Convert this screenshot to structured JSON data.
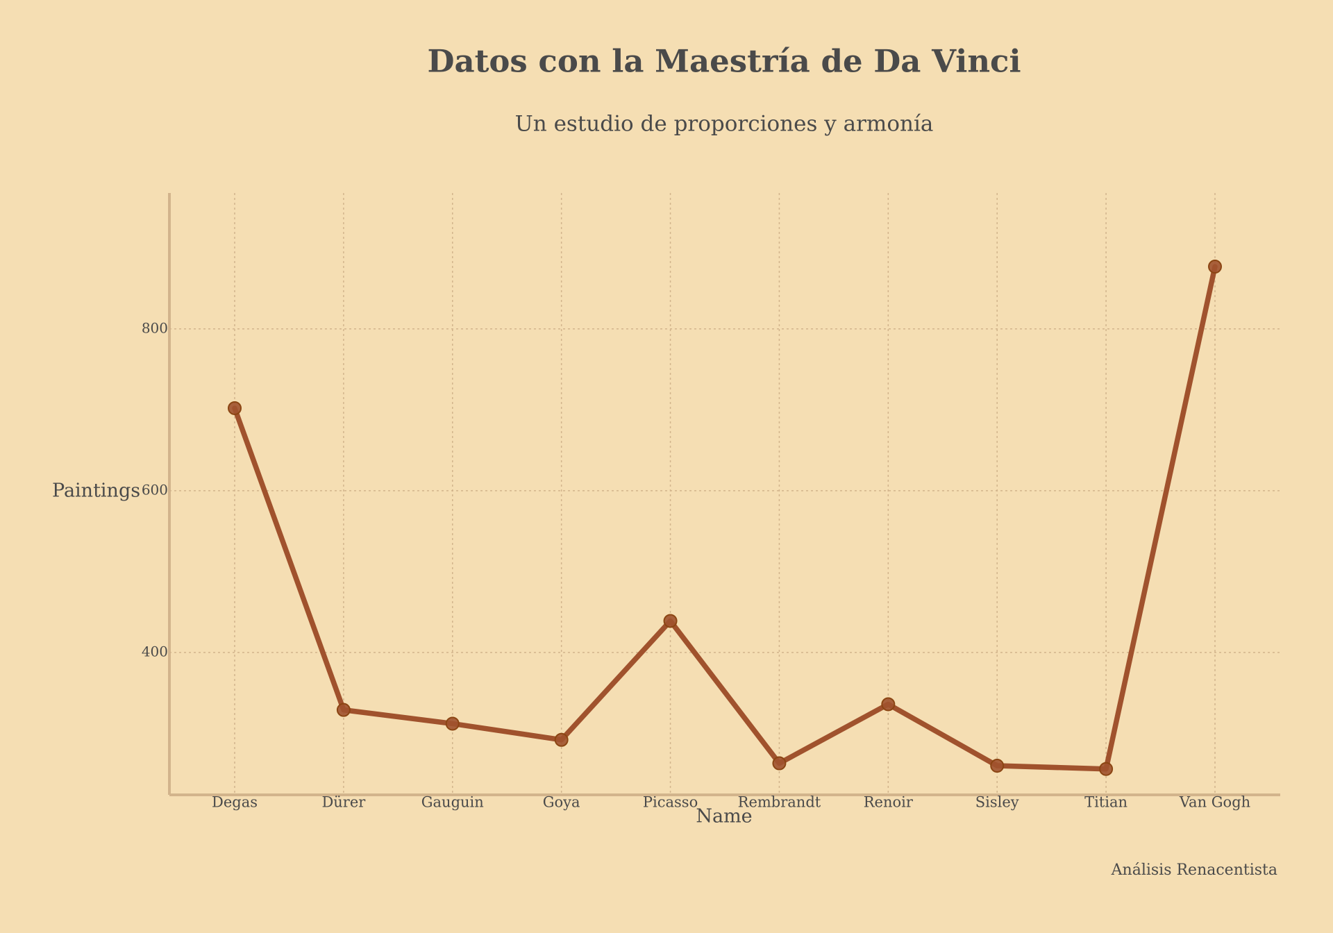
{
  "chart_data": {
    "type": "line",
    "title": "Datos con la Maestría de Da Vinci",
    "subtitle": "Un estudio de proporciones y armonía",
    "x_label": "Name",
    "y_label": "Paintings",
    "annotation": "Análisis Renacentista",
    "categories": [
      "Degas",
      "Dürer",
      "Gauguin",
      "Goya",
      "Picasso",
      "Rembrandt",
      "Renoir",
      "Sisley",
      "Titian",
      "Van Gogh"
    ],
    "series": [
      {
        "name": "Paintings",
        "color": "#a0522d",
        "values": [
          702,
          329,
          312,
          292,
          439,
          263,
          336,
          260,
          256,
          877
        ]
      }
    ],
    "ylim": [
      224,
      968
    ],
    "yticks": [
      400,
      600,
      800
    ],
    "grid": true
  }
}
